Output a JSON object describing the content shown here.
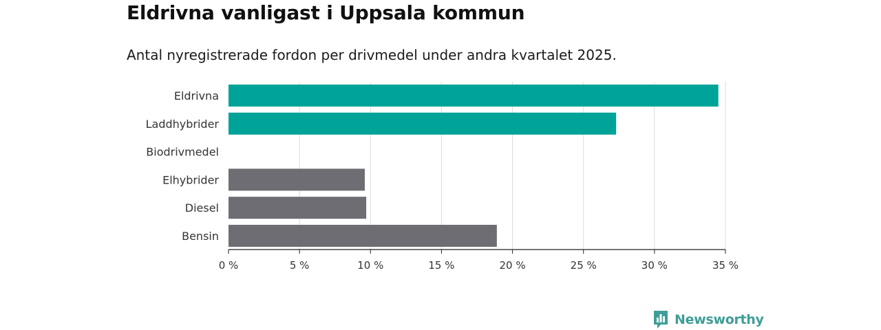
{
  "header": {
    "title": "Eldrivna vanligast i Uppsala kommun",
    "subtitle": "Antal nyregistrerade fordon per drivmedel under andra kvartalet 2025."
  },
  "logo": {
    "text": "Newsworthy",
    "icon": "newsworthy-logo-icon",
    "color": "#3f9e97"
  },
  "colors": {
    "highlight": "#00a398",
    "default": "#6e6d73",
    "grid": "#dcdcdc",
    "axis": "#222222"
  },
  "chart_data": {
    "type": "bar",
    "orientation": "horizontal",
    "categories": [
      "Eldrivna",
      "Laddhybrider",
      "Biodrivmedel",
      "Elhybrider",
      "Diesel",
      "Bensin"
    ],
    "values": [
      34.5,
      27.3,
      0,
      9.6,
      9.7,
      18.9
    ],
    "highlighted": [
      true,
      true,
      false,
      false,
      false,
      false
    ],
    "xlim": [
      0,
      35
    ],
    "ticks": [
      0,
      5,
      10,
      15,
      20,
      25,
      30,
      35
    ],
    "tick_labels": [
      "0 %",
      "5 %",
      "10 %",
      "15 %",
      "20 %",
      "25 %",
      "30 %",
      "35 %"
    ],
    "grid": true,
    "legend": "none"
  }
}
